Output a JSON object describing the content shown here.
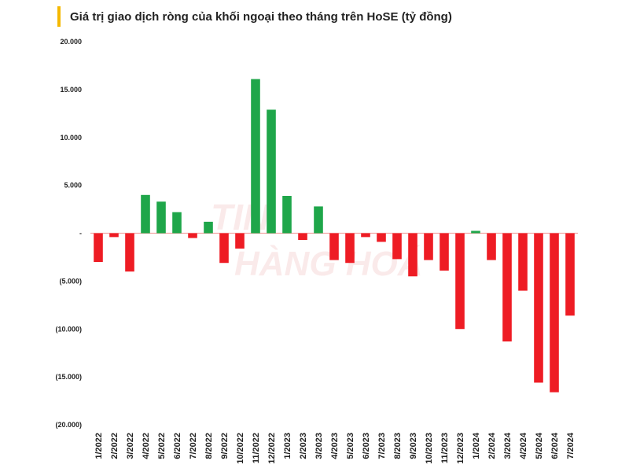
{
  "chart_data": {
    "type": "bar",
    "title": "Giá trị giao dịch ròng của khối ngoại theo tháng trên HoSE (tỷ đồng)",
    "xlabel": "",
    "ylabel": "",
    "ylim": [
      -20000,
      20000
    ],
    "y_ticks": [
      {
        "value": 20000,
        "label": "20.000"
      },
      {
        "value": 15000,
        "label": "15.000"
      },
      {
        "value": 10000,
        "label": "10.000"
      },
      {
        "value": 5000,
        "label": "5.000"
      },
      {
        "value": 0,
        "label": "-"
      },
      {
        "value": -5000,
        "label": "(5.000)"
      },
      {
        "value": -10000,
        "label": "(10.000)"
      },
      {
        "value": -15000,
        "label": "(15.000)"
      },
      {
        "value": -20000,
        "label": "(20.000)"
      }
    ],
    "categories": [
      "1/2022",
      "2/2022",
      "3/2022",
      "4/2022",
      "5/2022",
      "6/2022",
      "7/2022",
      "8/2022",
      "9/2022",
      "10/2022",
      "11/2022",
      "12/2022",
      "1/2023",
      "2/2023",
      "3/2023",
      "4/2023",
      "5/2023",
      "6/2023",
      "7/2023",
      "8/2023",
      "9/2023",
      "10/2023",
      "11/2023",
      "12/2023",
      "1/2024",
      "2/2024",
      "3/2024",
      "4/2024",
      "5/2024",
      "6/2024",
      "7/2024"
    ],
    "values": [
      -3000,
      -400,
      -4000,
      4000,
      3300,
      2200,
      -500,
      1200,
      -3100,
      -1600,
      16100,
      12900,
      3900,
      -700,
      2800,
      -2800,
      -3100,
      -400,
      -900,
      -2700,
      -4500,
      -2800,
      -3900,
      -10000,
      250,
      -2800,
      -11300,
      -6000,
      -15600,
      -16600,
      -8600
    ],
    "colors": {
      "positive": "#1fa64a",
      "negative": "#ee1c24",
      "zero_line": "#f4a6a6",
      "accent": "#f5b800"
    },
    "watermark": {
      "line1": "TIN",
      "line2": "HÀNG HOÁ"
    }
  }
}
